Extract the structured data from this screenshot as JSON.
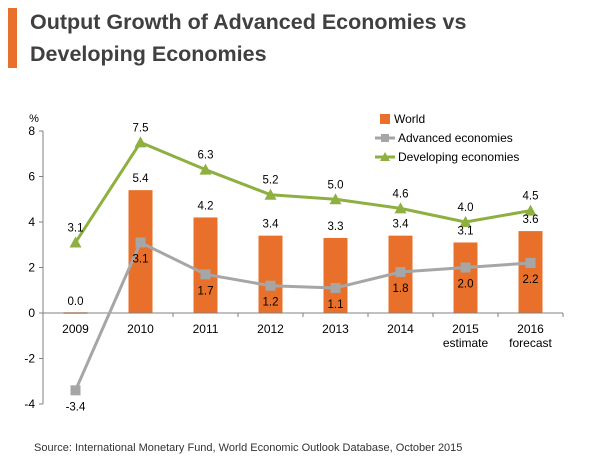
{
  "page": {
    "title_line1": "Output Growth of Advanced Economies vs",
    "title_line2": "Developing Economies",
    "source": "Source: International Monetary Fund, World Economic Outlook Database, October 2015"
  },
  "chart_data": {
    "type": "bar",
    "title": "Output Growth of Advanced Economies vs Developing Economies",
    "ylabel": "%",
    "ylim": [
      -4,
      8
    ],
    "yticks": [
      8,
      6,
      4,
      2,
      0,
      -2,
      -4
    ],
    "categories": [
      {
        "line1": "2009",
        "line2": ""
      },
      {
        "line1": "2010",
        "line2": ""
      },
      {
        "line1": "2011",
        "line2": ""
      },
      {
        "line1": "2012",
        "line2": ""
      },
      {
        "line1": "2013",
        "line2": ""
      },
      {
        "line1": "2014",
        "line2": ""
      },
      {
        "line1": "2015",
        "line2": "estimate"
      },
      {
        "line1": "2016",
        "line2": "forecast"
      }
    ],
    "series": [
      {
        "name": "World",
        "type": "bar",
        "color": "#E8702A",
        "values": [
          0.0,
          5.4,
          4.2,
          3.4,
          3.3,
          3.4,
          3.1,
          3.6
        ],
        "labels": [
          "0.0",
          "5.4",
          "4.2",
          "3.4",
          "3.3",
          "3.4",
          "3.1",
          "3.6"
        ]
      },
      {
        "name": "Advanced economies",
        "type": "line",
        "marker": "square",
        "color": "#A6A6A6",
        "values": [
          -3.4,
          3.1,
          1.7,
          1.2,
          1.1,
          1.8,
          2.0,
          2.2
        ],
        "labels": [
          "-3.4",
          "3.1",
          "1.7",
          "1.2",
          "1.1",
          "1.8",
          "2.0",
          "2.2"
        ]
      },
      {
        "name": "Developing economies",
        "type": "line",
        "marker": "triangle",
        "color": "#8DB040",
        "values": [
          3.1,
          7.5,
          6.3,
          5.2,
          5.0,
          4.6,
          4.0,
          4.5
        ],
        "labels": [
          "3.1",
          "7.5",
          "6.3",
          "5.2",
          "5.0",
          "4.6",
          "4.0",
          "4.5"
        ]
      }
    ],
    "legend_position": "top-right"
  }
}
